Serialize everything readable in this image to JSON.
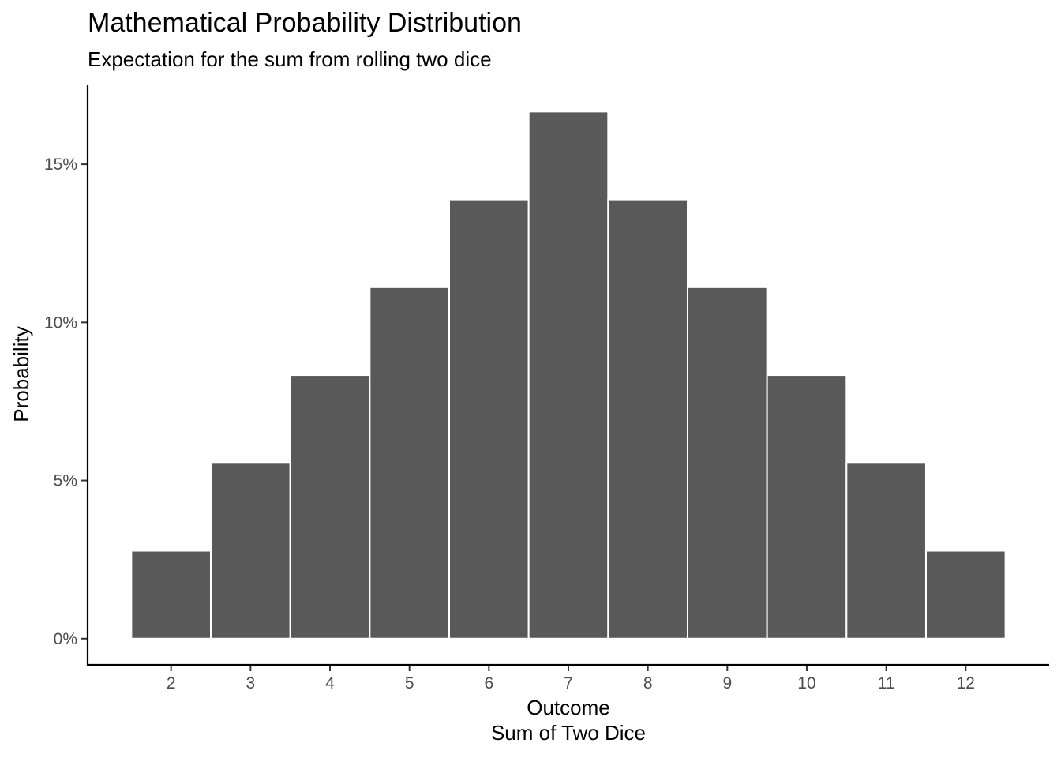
{
  "chart_data": {
    "type": "bar",
    "title": "Mathematical Probability Distribution",
    "subtitle": "Expectation for the sum from rolling two dice",
    "xlabel": [
      "Outcome",
      "Sum of Two Dice"
    ],
    "ylabel": "Probability",
    "categories": [
      "2",
      "3",
      "4",
      "5",
      "6",
      "7",
      "8",
      "9",
      "10",
      "11",
      "12"
    ],
    "values": [
      0.027778,
      0.055556,
      0.083333,
      0.111111,
      0.138889,
      0.166667,
      0.138889,
      0.111111,
      0.083333,
      0.055556,
      0.027778
    ],
    "yticks": [
      0,
      0.05,
      0.1,
      0.15
    ],
    "ytick_labels": [
      "0%",
      "5%",
      "10%",
      "15%"
    ],
    "ylim": [
      -0.0083,
      0.175
    ],
    "bar_color": "#595959",
    "bar_border_color": "#ffffff",
    "grid": false,
    "legend": "none"
  }
}
